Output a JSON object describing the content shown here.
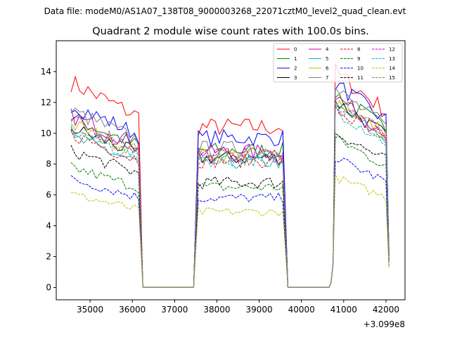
{
  "suptitle": "Data file: modeM0/AS1A07_138T08_9000003268_22071cztM0_level2_quad_clean.evt",
  "chart_data": {
    "type": "line",
    "title": "Quadrant 2 module wise count rates with 100.0s bins.",
    "xlabel": "",
    "ylabel": "",
    "x_offset_label": "+3.099e8",
    "xlim": [
      34200,
      42450
    ],
    "ylim": [
      -0.8,
      16
    ],
    "x_ticks": [
      35000,
      36000,
      37000,
      38000,
      39000,
      40000,
      41000,
      42000
    ],
    "x_tick_labels": [
      "35000",
      "36000",
      "37000",
      "38000",
      "39000",
      "40000",
      "41000",
      "42000"
    ],
    "y_ticks": [
      0,
      2,
      4,
      6,
      8,
      10,
      12,
      14
    ],
    "y_tick_labels": [
      "0",
      "2",
      "4",
      "6",
      "8",
      "10",
      "12",
      "14"
    ],
    "legend_location": "upper right",
    "segments": [
      {
        "start": 34550,
        "end": 36150,
        "drop_to": 36250,
        "flat_start": 36300,
        "flat_end": 37450
      },
      {
        "start": 37560,
        "end": 39560,
        "rise_from": 37450,
        "drop_to": 39680,
        "flat_start": 39720,
        "flat_end": 40650
      },
      {
        "start": 40800,
        "end": 42050,
        "rise_from": 40650
      }
    ],
    "series": [
      {
        "name": "0",
        "color": "#ff0000",
        "dash": "solid",
        "level1": 12.3,
        "level2": 10.4,
        "level3": 13.3
      },
      {
        "name": "1",
        "color": "#008000",
        "dash": "solid",
        "level1": 10.2,
        "level2": 8.9,
        "level3": 12.0
      },
      {
        "name": "2",
        "color": "#0000ff",
        "dash": "solid",
        "level1": 11.0,
        "level2": 9.7,
        "level3": 12.6
      },
      {
        "name": "3",
        "color": "#000000",
        "dash": "solid",
        "level1": 9.6,
        "level2": 8.4,
        "level3": 11.5
      },
      {
        "name": "4",
        "color": "#bf00bf",
        "dash": "solid",
        "level1": 10.3,
        "level2": 8.8,
        "level3": 11.8
      },
      {
        "name": "5",
        "color": "#00bfbf",
        "dash": "solid",
        "level1": 9.0,
        "level2": 8.1,
        "level3": 11.2
      },
      {
        "name": "6",
        "color": "#bfbf00",
        "dash": "solid",
        "level1": 9.8,
        "level2": 8.6,
        "level3": 11.6
      },
      {
        "name": "7",
        "color": "#808080",
        "dash": "solid",
        "level1": 10.6,
        "level2": 9.0,
        "level3": 12.2
      },
      {
        "name": "8",
        "color": "#ff0000",
        "dash": "dashed",
        "level1": 9.2,
        "level2": 8.2,
        "level3": 11.0
      },
      {
        "name": "9",
        "color": "#008000",
        "dash": "dashed",
        "level1": 7.2,
        "level2": 6.5,
        "level3": 9.2
      },
      {
        "name": "10",
        "color": "#0000ff",
        "dash": "dashed",
        "level1": 6.5,
        "level2": 5.8,
        "level3": 8.0
      },
      {
        "name": "11",
        "color": "#000000",
        "dash": "dashed",
        "level1": 8.2,
        "level2": 6.8,
        "level3": 9.6
      },
      {
        "name": "12",
        "color": "#bf00bf",
        "dash": "dashed",
        "level1": 10.0,
        "level2": 8.6,
        "level3": 11.4
      },
      {
        "name": "13",
        "color": "#00bfbf",
        "dash": "dashed",
        "level1": 9.4,
        "level2": 8.3,
        "level3": 11.0
      },
      {
        "name": "14",
        "color": "#bfbf00",
        "dash": "dashed",
        "level1": 5.6,
        "level2": 4.9,
        "level3": 6.8
      },
      {
        "name": "15",
        "color": "#808080",
        "dash": "dashed",
        "level1": 9.7,
        "level2": 8.5,
        "level3": 11.3
      }
    ]
  }
}
